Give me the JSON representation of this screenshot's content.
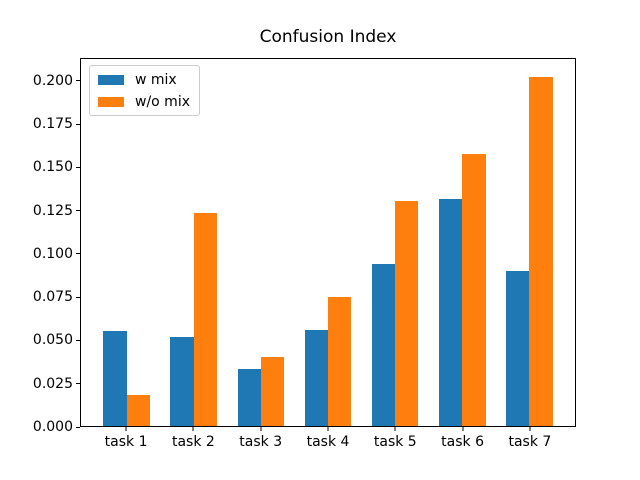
{
  "figure": {
    "background": "#ffffff",
    "spine_color": "#000000",
    "legend_border_color": "#cccccc"
  },
  "chart_data": {
    "type": "bar",
    "title": "Confusion Index",
    "xlabel": "",
    "ylabel": "",
    "categories": [
      "task 1",
      "task 2",
      "task 3",
      "task 4",
      "task 5",
      "task 6",
      "task 7"
    ],
    "series": [
      {
        "name": "w mix",
        "color": "#1f77b4",
        "values": [
          0.055,
          0.052,
          0.033,
          0.056,
          0.094,
          0.132,
          0.09
        ]
      },
      {
        "name": "w/o mix",
        "color": "#ff7f0e",
        "values": [
          0.018,
          0.124,
          0.04,
          0.075,
          0.131,
          0.158,
          0.203
        ]
      }
    ],
    "ytick_labels": [
      "0.000",
      "0.025",
      "0.050",
      "0.075",
      "0.100",
      "0.125",
      "0.150",
      "0.175",
      "0.200"
    ],
    "ylim": [
      0,
      0.2132
    ],
    "xlim": [
      -0.685,
      6.685
    ],
    "bar_width": 0.35,
    "grid": false,
    "legend_position": "upper left"
  }
}
